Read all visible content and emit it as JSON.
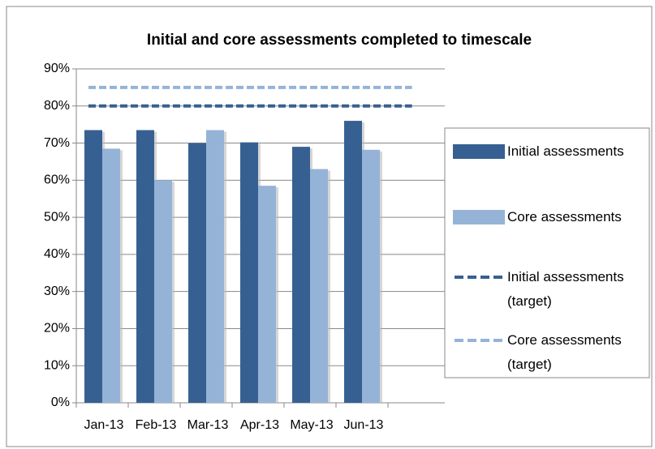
{
  "chart_data": {
    "type": "bar",
    "title": "Initial and core assessments completed to timescale",
    "categories": [
      "Jan-13",
      "Feb-13",
      "Mar-13",
      "Apr-13",
      "May-13",
      "Jun-13"
    ],
    "series": [
      {
        "name": "Initial assessments",
        "color": "#376092",
        "values": [
          73.5,
          73.5,
          70,
          70.2,
          69,
          76
        ]
      },
      {
        "name": "Core assessments",
        "color": "#95b3d7",
        "values": [
          68.5,
          60,
          73.5,
          58.5,
          63,
          68.2
        ]
      },
      {
        "name": "Initial assessments (target)",
        "type": "line",
        "dashed": true,
        "color": "#376092",
        "values": [
          80,
          80,
          80,
          80,
          80,
          80
        ]
      },
      {
        "name": "Core assessments (target)",
        "type": "line",
        "dashed": true,
        "color": "#95b3d7",
        "values": [
          85,
          85,
          85,
          85,
          85,
          85
        ]
      }
    ],
    "ylim": [
      0,
      90
    ],
    "yticks": [
      {
        "value": 0,
        "label": "0%"
      },
      {
        "value": 10,
        "label": "10%"
      },
      {
        "value": 20,
        "label": "20%"
      },
      {
        "value": 30,
        "label": "30%"
      },
      {
        "value": 40,
        "label": "40%"
      },
      {
        "value": 50,
        "label": "50%"
      },
      {
        "value": 60,
        "label": "60%"
      },
      {
        "value": 70,
        "label": "70%"
      },
      {
        "value": 80,
        "label": "80%"
      },
      {
        "value": 90,
        "label": "90%"
      }
    ],
    "grid": true,
    "legend": "right"
  }
}
